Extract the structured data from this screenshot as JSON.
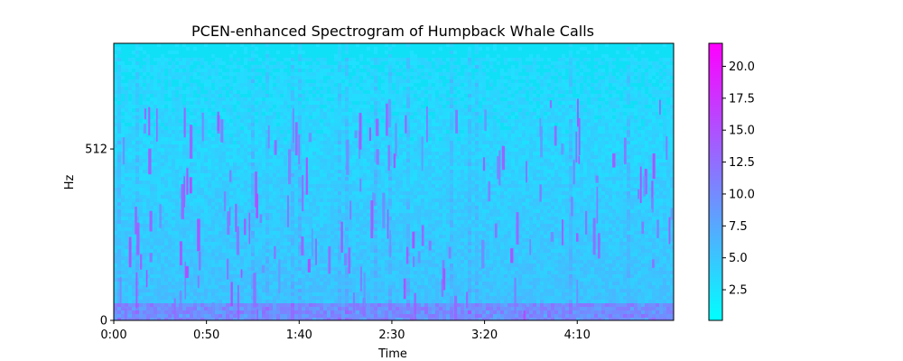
{
  "chart_data": {
    "type": "heatmap",
    "title": "PCEN-enhanced Spectrogram of Humpback Whale Calls",
    "xlabel": "Time",
    "ylabel": "Hz",
    "y_scale": "mel",
    "x_ticks": [
      {
        "seconds": 0,
        "label": "0:00"
      },
      {
        "seconds": 50,
        "label": "0:50"
      },
      {
        "seconds": 100,
        "label": "1:40"
      },
      {
        "seconds": 150,
        "label": "2:30"
      },
      {
        "seconds": 200,
        "label": "3:20"
      },
      {
        "seconds": 250,
        "label": "4:10"
      }
    ],
    "xlim": [
      0,
      302
    ],
    "y_ticks": [
      {
        "hz": 0,
        "label": "0"
      },
      {
        "hz": 512,
        "label": "512"
      }
    ],
    "colormap": {
      "name": "cool",
      "low": "#00ffff",
      "high": "#ff00ff",
      "range": [
        0.1,
        21.8
      ]
    },
    "colorbar_ticks": [
      {
        "value": 2.5,
        "label": "2.5"
      },
      {
        "value": 5.0,
        "label": "5.0"
      },
      {
        "value": 7.5,
        "label": "7.5"
      },
      {
        "value": 10.0,
        "label": "10.0"
      },
      {
        "value": 12.5,
        "label": "12.5"
      },
      {
        "value": 15.0,
        "label": "15.0"
      },
      {
        "value": 17.5,
        "label": "17.5"
      },
      {
        "value": 20.0,
        "label": "20.0"
      }
    ],
    "grid": false,
    "legend": "none"
  }
}
